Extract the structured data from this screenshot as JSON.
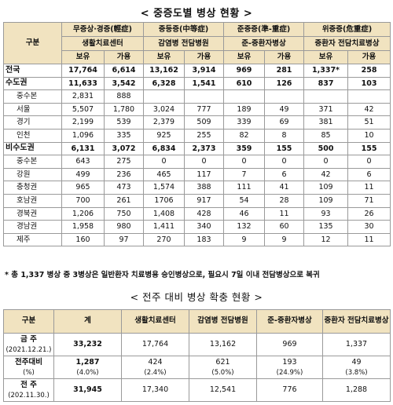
{
  "title1": "< 중증도별 병상 현황 >",
  "title2": "< 전주 대비 병상 확충 현황 >",
  "table1": {
    "header_gubun": "구분",
    "groups": [
      {
        "severity": "무증상·경증(輕症)",
        "facility": "생활치료센터"
      },
      {
        "severity": "중등증(中等症)",
        "facility": "감염병 전담병원"
      },
      {
        "severity": "준중증(準-重症)",
        "facility": "준-중환자병상"
      },
      {
        "severity": "위중증(危重症)",
        "facility": "중환자 전담치료병상"
      }
    ],
    "sub_headers": [
      "보유",
      "가용"
    ],
    "rows": [
      {
        "label": "전국",
        "vals": [
          "17,764",
          "6,614",
          "13,162",
          "3,914",
          "969",
          "281",
          "1,337*",
          "258"
        ]
      },
      {
        "label": "수도권",
        "vals": [
          "11,633",
          "3,542",
          "6,328",
          "1,541",
          "610",
          "126",
          "837",
          "103"
        ]
      },
      {
        "label": "중수본",
        "vals": [
          "2,831",
          "888",
          "",
          "",
          "",
          "",
          "",
          ""
        ]
      },
      {
        "label": "서울",
        "vals": [
          "5,507",
          "1,780",
          "3,024",
          "777",
          "189",
          "49",
          "371",
          "42"
        ]
      },
      {
        "label": "경기",
        "vals": [
          "2,199",
          "539",
          "2,379",
          "509",
          "339",
          "69",
          "381",
          "51"
        ]
      },
      {
        "label": "인천",
        "vals": [
          "1,096",
          "335",
          "925",
          "255",
          "82",
          "8",
          "85",
          "10"
        ]
      },
      {
        "label": "비수도권",
        "vals": [
          "6,131",
          "3,072",
          "6,834",
          "2,373",
          "359",
          "155",
          "500",
          "155"
        ]
      },
      {
        "label": "중수본",
        "vals": [
          "643",
          "275",
          "0",
          "0",
          "0",
          "0",
          "0",
          "0"
        ]
      },
      {
        "label": "강원",
        "vals": [
          "499",
          "236",
          "465",
          "117",
          "7",
          "6",
          "42",
          "6"
        ]
      },
      {
        "label": "충청권",
        "vals": [
          "965",
          "473",
          "1,574",
          "388",
          "111",
          "41",
          "109",
          "11"
        ]
      },
      {
        "label": "호남권",
        "vals": [
          "700",
          "261",
          "1706",
          "917",
          "54",
          "28",
          "109",
          "71"
        ]
      },
      {
        "label": "경북권",
        "vals": [
          "1,206",
          "750",
          "1,408",
          "428",
          "46",
          "11",
          "93",
          "26"
        ]
      },
      {
        "label": "경남권",
        "vals": [
          "1,958",
          "980",
          "1,411",
          "340",
          "132",
          "60",
          "135",
          "30"
        ]
      },
      {
        "label": "제주",
        "vals": [
          "160",
          "97",
          "270",
          "183",
          "9",
          "9",
          "12",
          "11"
        ]
      }
    ]
  },
  "note": "* 총 1,337 병상 중 3병상은 일반환자 치료병용 승인병상으로, 필요시 7일 이내 전담병상으로 복귀",
  "table2": {
    "headers": [
      "구분",
      "계",
      "생활치료센터",
      "감염병 전담병원",
      "준-중환자병상",
      "중환자 전담치료병상"
    ],
    "rows": [
      {
        "label": "금 주",
        "sub": "(2021.12.21.)",
        "vals": [
          "33,232",
          "17,764",
          "13,162",
          "969",
          "1,337"
        ],
        "pcts": [
          "",
          "",
          "",
          "",
          ""
        ]
      },
      {
        "label": "전주대비",
        "sub": "(%)",
        "vals": [
          "1,287",
          "424",
          "621",
          "193",
          "49"
        ],
        "pcts": [
          "(4.0%)",
          "(2.4%)",
          "(5.0%)",
          "(24.9%)",
          "(3.8%)"
        ]
      },
      {
        "label": "전 주",
        "sub": "(202.11.30.)",
        "vals": [
          "31,945",
          "17,340",
          "12,541",
          "776",
          "1,288"
        ],
        "pcts": [
          "",
          "",
          "",
          "",
          ""
        ]
      }
    ]
  }
}
